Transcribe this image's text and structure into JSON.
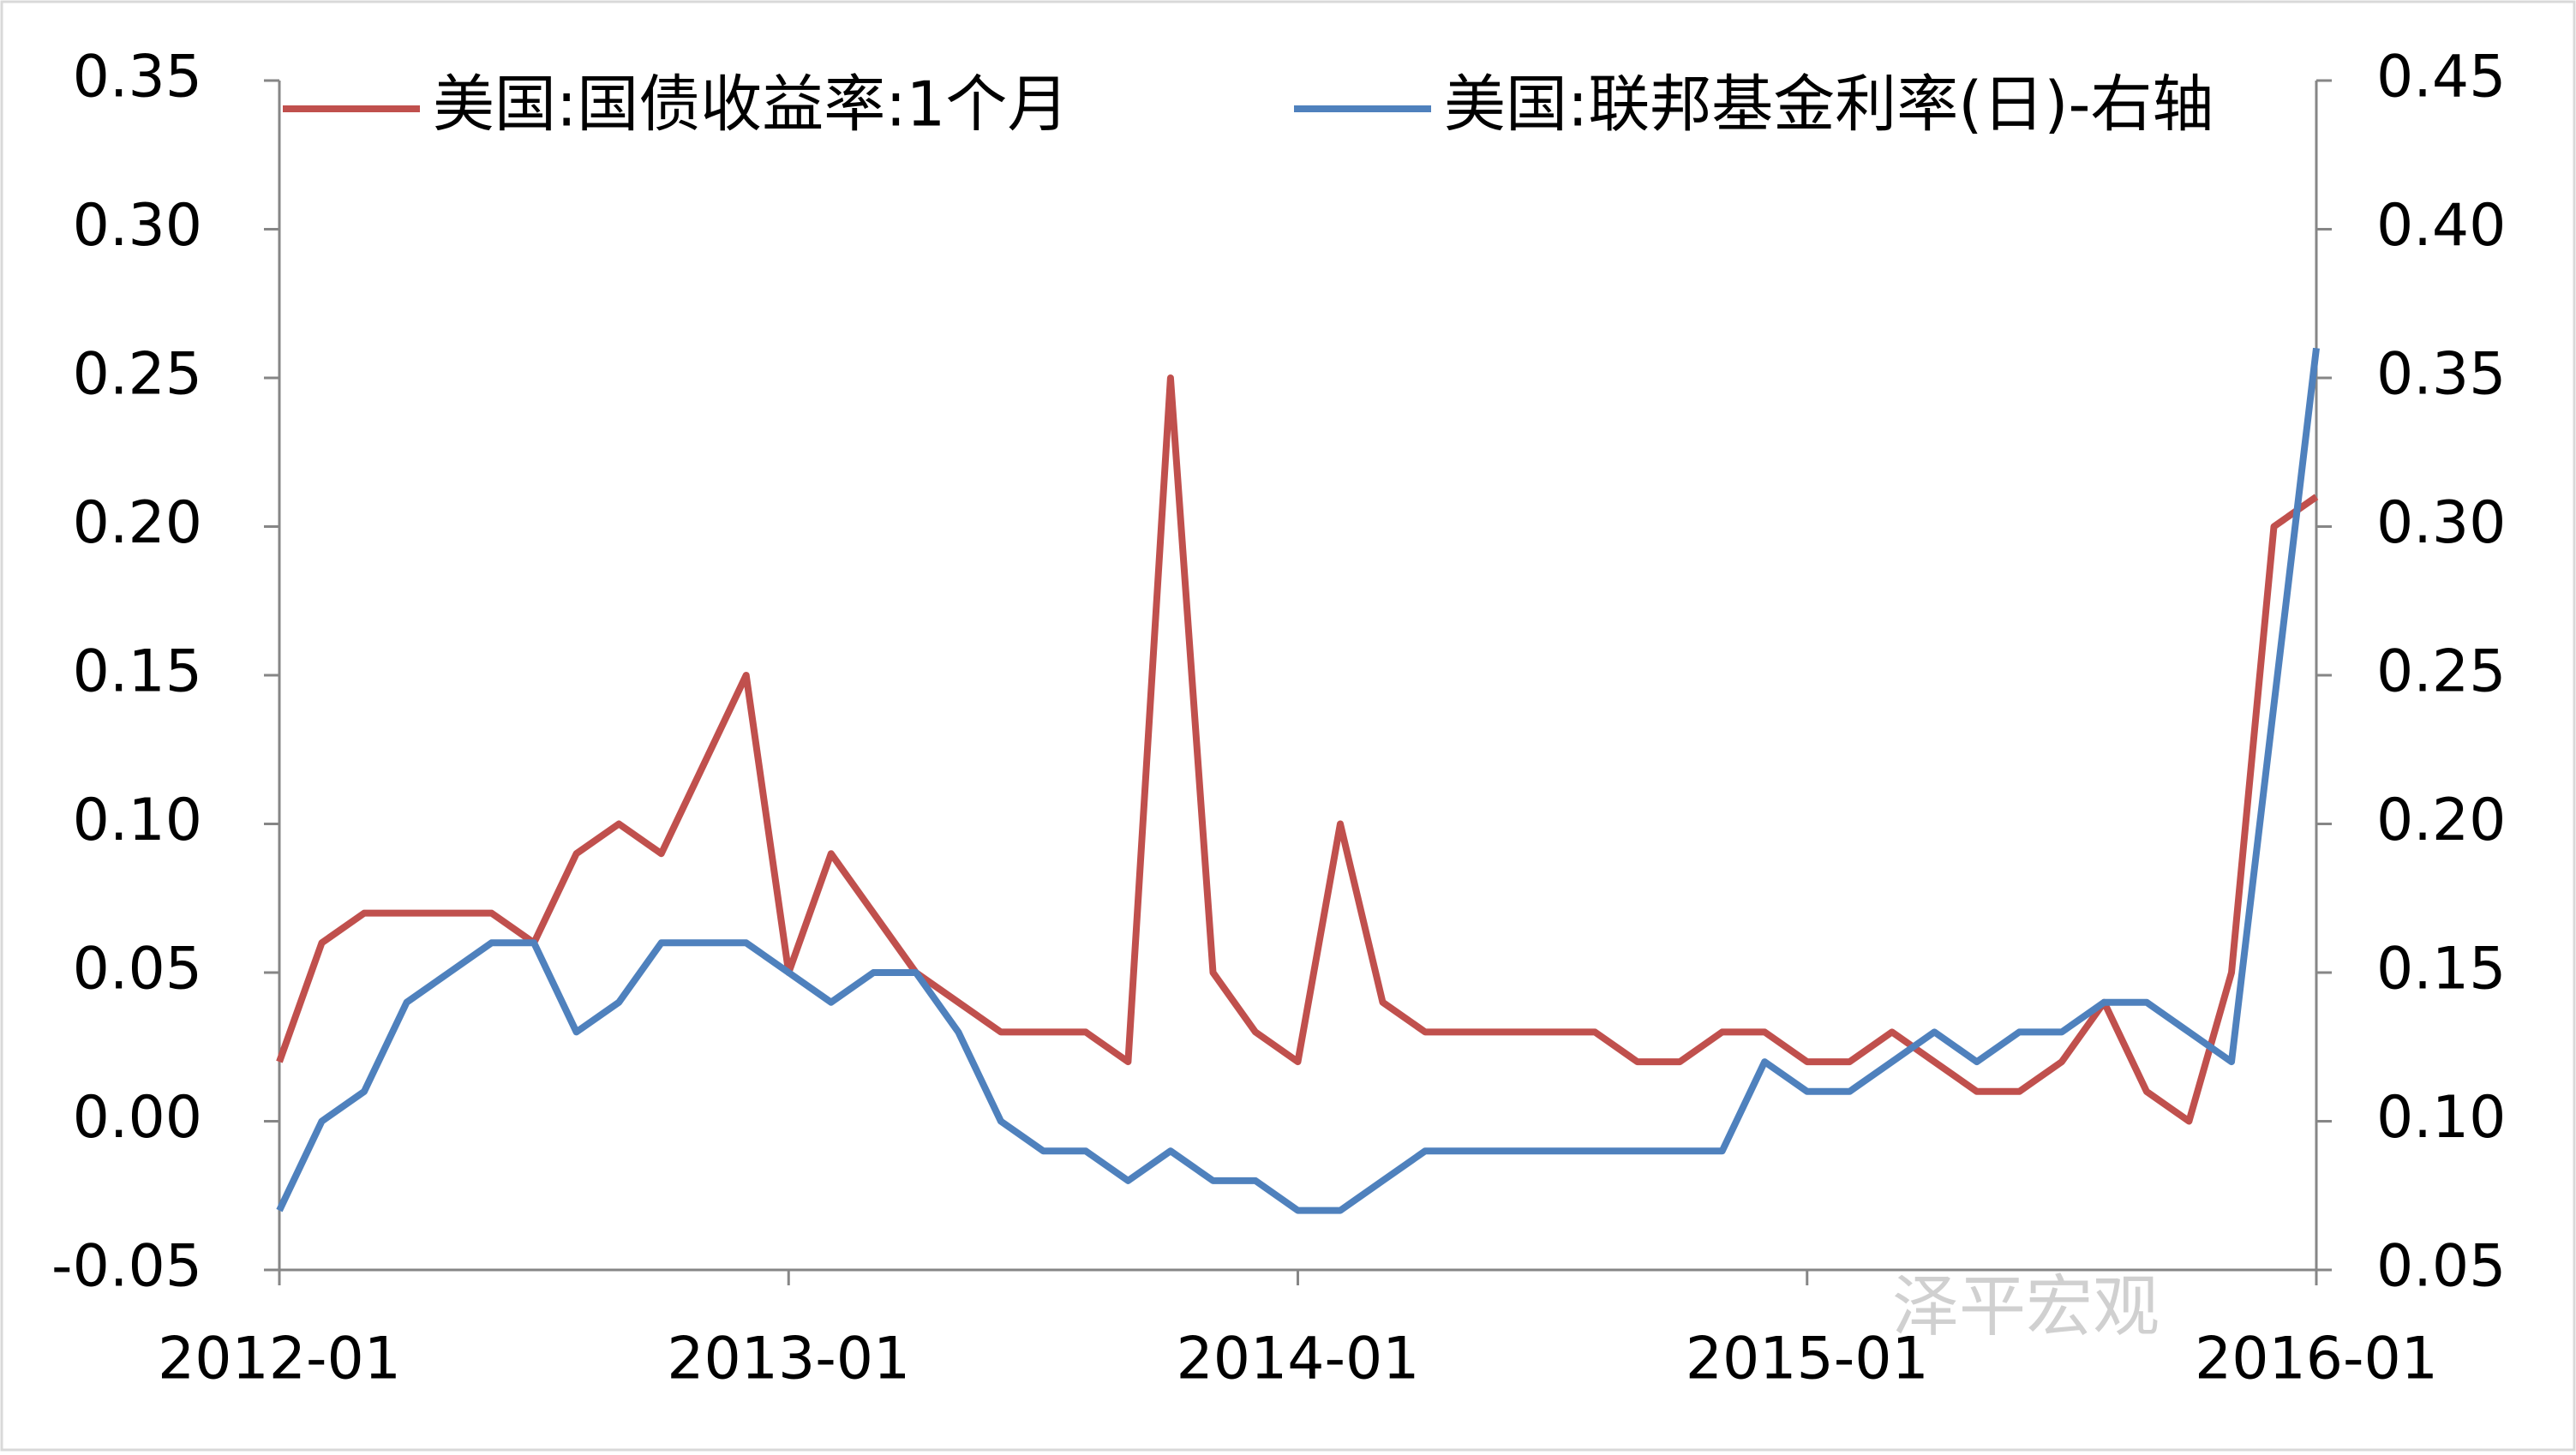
{
  "chart_data": {
    "type": "line",
    "x": [
      "2012-01",
      "2012-02",
      "2012-03",
      "2012-04",
      "2012-05",
      "2012-06",
      "2012-07",
      "2012-08",
      "2012-09",
      "2012-10",
      "2012-11",
      "2012-12",
      "2013-01",
      "2013-02",
      "2013-03",
      "2013-04",
      "2013-05",
      "2013-06",
      "2013-07",
      "2013-08",
      "2013-09",
      "2013-10",
      "2013-11",
      "2013-12",
      "2014-01",
      "2014-02",
      "2014-03",
      "2014-04",
      "2014-05",
      "2014-06",
      "2014-07",
      "2014-08",
      "2014-09",
      "2014-10",
      "2014-11",
      "2014-12",
      "2015-01",
      "2015-02",
      "2015-03",
      "2015-04",
      "2015-05",
      "2015-06",
      "2015-07",
      "2015-08",
      "2015-09",
      "2015-10",
      "2015-11",
      "2015-12",
      "2016-01"
    ],
    "xticks": [
      "2012-01",
      "2013-01",
      "2014-01",
      "2015-01",
      "2016-01"
    ],
    "series": [
      {
        "name": "美国:国债收益率:1个月",
        "color": "#c0504d",
        "values": [
          0.02,
          0.06,
          0.07,
          0.07,
          0.07,
          0.07,
          0.06,
          0.09,
          0.1,
          0.09,
          0.12,
          0.15,
          0.05,
          0.09,
          0.07,
          0.05,
          0.04,
          0.03,
          0.03,
          0.03,
          0.02,
          0.25,
          0.05,
          0.03,
          0.02,
          0.1,
          0.04,
          0.03,
          0.03,
          0.03,
          0.03,
          0.03,
          0.02,
          0.02,
          0.03,
          0.03,
          0.02,
          0.02,
          0.03,
          0.02,
          0.01,
          0.01,
          0.02,
          0.04,
          0.01,
          0.0,
          0.05,
          0.2,
          0.21
        ]
      },
      {
        "name": "美国:联邦基金利率(日)-右轴",
        "color": "#4f81bd",
        "axis": "y2",
        "values": [
          0.07,
          0.1,
          0.11,
          0.14,
          0.15,
          0.16,
          0.16,
          0.13,
          0.14,
          0.16,
          0.16,
          0.16,
          0.15,
          0.14,
          0.15,
          0.15,
          0.13,
          0.1,
          0.09,
          0.09,
          0.08,
          0.09,
          0.08,
          0.08,
          0.07,
          0.07,
          0.08,
          0.09,
          0.09,
          0.09,
          0.09,
          0.09,
          0.09,
          0.09,
          0.09,
          0.12,
          0.11,
          0.11,
          0.12,
          0.13,
          0.12,
          0.13,
          0.13,
          0.14,
          0.14,
          0.13,
          0.12,
          0.24,
          0.36
        ]
      }
    ],
    "ylim": [
      -0.05,
      0.35
    ],
    "yticks": [
      -0.05,
      {
        "value": 0,
        "label": "0.00"
      },
      0.05,
      {
        "value": 0.1,
        "label": "0.10"
      },
      0.15,
      {
        "value": 0.2,
        "label": "0.20"
      },
      0.25,
      {
        "value": 0.3,
        "label": "0.30"
      },
      0.35
    ],
    "y2lim": [
      0.05,
      0.45
    ],
    "y2ticks": [
      0.05,
      {
        "value": 0.1,
        "label": "0.10"
      },
      0.15,
      {
        "value": 0.2,
        "label": "0.20"
      },
      0.25,
      {
        "value": 0.3,
        "label": "0.30"
      },
      0.35,
      {
        "value": 0.4,
        "label": "0.40"
      },
      0.45
    ],
    "legend": "top",
    "watermark": "泽平宏观"
  }
}
